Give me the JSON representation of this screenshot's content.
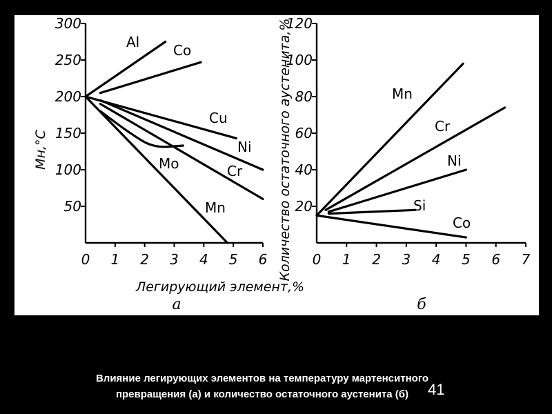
{
  "caption": {
    "line1": "Влияние легирующих элементов на температуру мартенситного",
    "line2": "превращения (а) и количество остаточного аустенита (б)"
  },
  "page_number": "41",
  "shared_xlabel": "Легирующий элемент,%",
  "chart_data": [
    {
      "type": "line",
      "panel_label": "а",
      "ylabel": "Mн,°C",
      "xlabel": "",
      "xlim": [
        0,
        6
      ],
      "ylim": [
        0,
        300
      ],
      "x_ticks": [
        0,
        1,
        2,
        3,
        4,
        5,
        6
      ],
      "y_ticks": [
        50,
        100,
        150,
        200,
        250,
        300
      ],
      "grid": false,
      "series": [
        {
          "name": "Al",
          "points": [
            [
              0,
              200
            ],
            [
              2.7,
              275
            ]
          ]
        },
        {
          "name": "Co",
          "points": [
            [
              0.5,
              205
            ],
            [
              3.9,
              247
            ]
          ]
        },
        {
          "name": "Cu",
          "points": [
            [
              0,
              200
            ],
            [
              5.1,
              143
            ]
          ]
        },
        {
          "name": "Ni",
          "points": [
            [
              0.5,
              195
            ],
            [
              6,
              100
            ]
          ]
        },
        {
          "name": "Cr",
          "points": [
            [
              0.5,
              190
            ],
            [
              6,
              60
            ]
          ]
        },
        {
          "name": "Mo",
          "points": [
            [
              0.5,
              180
            ],
            [
              1.5,
              150
            ],
            [
              2.3,
              130
            ],
            [
              3.3,
              133
            ]
          ]
        },
        {
          "name": "Mn",
          "points": [
            [
              0,
              200
            ],
            [
              4.8,
              0
            ]
          ]
        }
      ]
    },
    {
      "type": "line",
      "panel_label": "б",
      "ylabel": "Количество остаточного аустенита,%",
      "xlabel": "",
      "xlim": [
        0,
        7
      ],
      "ylim": [
        0,
        120
      ],
      "x_ticks": [
        0,
        1,
        2,
        3,
        4,
        5,
        6,
        7
      ],
      "y_ticks": [
        20,
        40,
        60,
        80,
        100,
        120
      ],
      "grid": false,
      "series": [
        {
          "name": "Mn",
          "points": [
            [
              0,
              15
            ],
            [
              4.9,
              98
            ]
          ]
        },
        {
          "name": "Cr",
          "points": [
            [
              0.3,
              18
            ],
            [
              6.3,
              74
            ]
          ]
        },
        {
          "name": "Ni",
          "points": [
            [
              0.4,
              17
            ],
            [
              5,
              40
            ]
          ]
        },
        {
          "name": "Si",
          "points": [
            [
              0.4,
              16
            ],
            [
              3.3,
              18
            ]
          ]
        },
        {
          "name": "Co",
          "points": [
            [
              0,
              15
            ],
            [
              5,
              3
            ]
          ]
        }
      ]
    }
  ]
}
